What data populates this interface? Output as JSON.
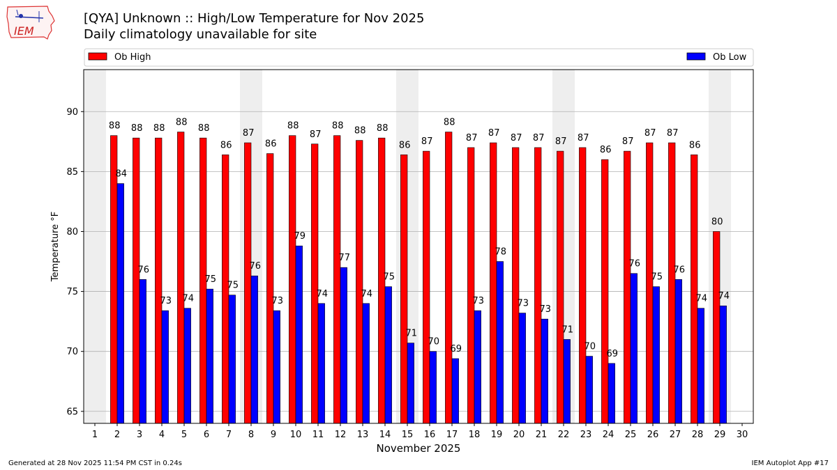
{
  "title_line1": "[QYA] Unknown :: High/Low Temperature for Nov 2025",
  "title_line2": "Daily climatology unavailable for site",
  "logo_text": "IEM",
  "footer_left": "Generated at 28 Nov 2025 11:54 PM CST in 0.24s",
  "footer_right": "IEM Autoplot App #17",
  "colors": {
    "high": "#ff0000",
    "low": "#0000ff",
    "weekend_shade": "#eeeeee",
    "grid": "#b0b0b0"
  },
  "chart_data": {
    "type": "bar",
    "xlabel": "November 2025",
    "ylabel": "Temperature °F",
    "ylim": [
      64,
      93.5
    ],
    "xlim": [
      0.5,
      30.5
    ],
    "yticks": [
      65,
      70,
      75,
      80,
      85,
      90
    ],
    "grid": "horizontal",
    "legend": "top, above plot",
    "categories": [
      "1",
      "2",
      "3",
      "4",
      "5",
      "6",
      "7",
      "8",
      "9",
      "10",
      "11",
      "12",
      "13",
      "14",
      "15",
      "16",
      "17",
      "18",
      "19",
      "20",
      "21",
      "22",
      "23",
      "24",
      "25",
      "26",
      "27",
      "28",
      "29",
      "30"
    ],
    "shaded_days": [
      1,
      8,
      15,
      22,
      29
    ],
    "series": [
      {
        "name": "Ob High",
        "color": "#ff0000",
        "values": [
          null,
          88,
          87.8,
          87.8,
          88.3,
          87.8,
          86.4,
          87.4,
          86.5,
          88,
          87.3,
          88,
          87.6,
          87.8,
          86.4,
          86.7,
          88.3,
          87,
          87.4,
          87,
          87,
          86.7,
          87,
          86,
          86.7,
          87.4,
          87.4,
          86.4,
          80,
          null
        ],
        "labels": [
          "",
          "88",
          "88",
          "88",
          "88",
          "88",
          "86",
          "87",
          "86",
          "88",
          "87",
          "88",
          "88",
          "88",
          "86",
          "87",
          "88",
          "87",
          "87",
          "87",
          "87",
          "87",
          "87",
          "86",
          "87",
          "87",
          "87",
          "86",
          "80",
          ""
        ]
      },
      {
        "name": "Ob Low",
        "color": "#0000ff",
        "values": [
          null,
          84,
          76,
          73.4,
          73.6,
          75.2,
          74.7,
          76.3,
          73.4,
          78.8,
          74,
          77,
          74,
          75.4,
          70.7,
          70,
          69.4,
          73.4,
          77.5,
          73.2,
          72.7,
          71,
          69.6,
          69,
          76.5,
          75.4,
          76,
          73.6,
          73.8,
          null
        ],
        "labels": [
          "",
          "84",
          "76",
          "73",
          "74",
          "75",
          "75",
          "76",
          "73",
          "79",
          "74",
          "77",
          "74",
          "75",
          "71",
          "70",
          "69",
          "73",
          "78",
          "73",
          "73",
          "71",
          "70",
          "69",
          "76",
          "75",
          "76",
          "74",
          "74",
          ""
        ]
      }
    ]
  }
}
